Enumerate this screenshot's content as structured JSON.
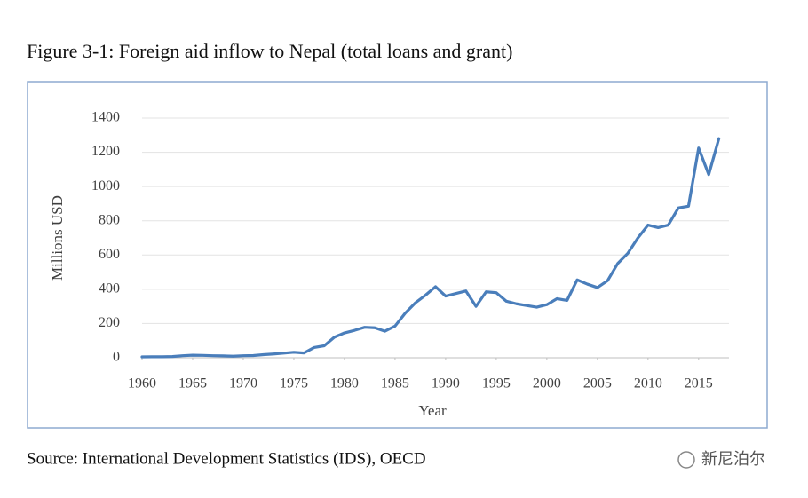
{
  "chart_data": {
    "type": "line",
    "title": "Figure 3-1: Foreign aid inflow to Nepal (total loans and grant)",
    "y_label": "Millions USD",
    "x_label": "Year",
    "source": "Source: International Development Statistics (IDS), OECD",
    "x": [
      1960,
      1961,
      1962,
      1963,
      1964,
      1965,
      1966,
      1967,
      1968,
      1969,
      1970,
      1971,
      1972,
      1973,
      1974,
      1975,
      1976,
      1977,
      1978,
      1979,
      1980,
      1981,
      1982,
      1983,
      1984,
      1985,
      1986,
      1987,
      1988,
      1989,
      1990,
      1991,
      1992,
      1993,
      1994,
      1995,
      1996,
      1997,
      1998,
      1999,
      2000,
      2001,
      2002,
      2003,
      2004,
      2005,
      2006,
      2007,
      2008,
      2009,
      2010,
      2011,
      2012,
      2013,
      2014,
      2015,
      2016,
      2017
    ],
    "values": [
      5,
      6,
      6,
      7,
      12,
      15,
      14,
      12,
      11,
      9,
      12,
      13,
      18,
      22,
      27,
      32,
      28,
      60,
      70,
      120,
      145,
      160,
      178,
      175,
      155,
      185,
      260,
      320,
      365,
      415,
      360,
      375,
      390,
      300,
      385,
      380,
      330,
      315,
      305,
      295,
      310,
      345,
      335,
      455,
      430,
      410,
      450,
      550,
      610,
      700,
      775,
      760,
      775,
      875,
      885,
      1225,
      1070,
      1280
    ],
    "color": "#4a7ebb",
    "xlim": [
      1960,
      2018
    ],
    "xticks": [
      1960,
      1965,
      1970,
      1975,
      1980,
      1985,
      1990,
      1995,
      2000,
      2005,
      2010,
      2015
    ],
    "ylim": [
      0,
      1400
    ],
    "yticks": [
      0,
      200,
      400,
      600,
      800,
      1000,
      1200,
      1400
    ],
    "grid": true
  },
  "watermark": "新尼泊尔"
}
